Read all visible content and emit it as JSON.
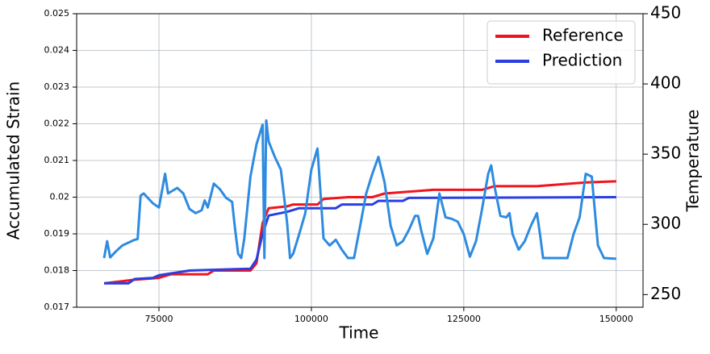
{
  "chart_data": {
    "type": "line",
    "xlabel": "Time",
    "ylabel": "Accumulated Strain",
    "y2label": "Temperature",
    "xlim": [
      61500,
      154400
    ],
    "xticks": [
      75000,
      100000,
      125000,
      150000
    ],
    "ylim": [
      0.017,
      0.025
    ],
    "yticks": [
      0.017,
      0.018,
      0.019,
      0.02,
      0.021,
      0.022,
      0.023,
      0.024,
      0.025
    ],
    "y2lim": [
      241,
      450
    ],
    "y2ticks": [
      250,
      300,
      350,
      400,
      450
    ],
    "grid": true,
    "legend": "upper right",
    "series": [
      {
        "name": "Reference",
        "color": "#f0141e",
        "axis": "y",
        "x": [
          66000,
          71000,
          75000,
          77000,
          83000,
          84000,
          90000,
          91000,
          92000,
          93000,
          96000,
          97000,
          101000,
          102000,
          106000,
          110000,
          112000,
          120000,
          128000,
          130000,
          137000,
          145000,
          150000
        ],
        "values": [
          0.01765,
          0.01775,
          0.0178,
          0.0179,
          0.0179,
          0.018,
          0.018,
          0.0182,
          0.0193,
          0.0197,
          0.01975,
          0.0198,
          0.0198,
          0.01995,
          0.02,
          0.02,
          0.0201,
          0.0202,
          0.0202,
          0.0203,
          0.0203,
          0.0204,
          0.02043
        ]
      },
      {
        "name": "Prediction",
        "color": "#2a3fe0",
        "axis": "y",
        "x": [
          66000,
          70000,
          71000,
          74000,
          75000,
          78000,
          80000,
          90000,
          91000,
          92000,
          93000,
          96000,
          98000,
          104000,
          105000,
          110000,
          111000,
          115000,
          116000,
          150000
        ],
        "values": [
          0.01765,
          0.01765,
          0.01777,
          0.0178,
          0.01787,
          0.01795,
          0.018,
          0.01805,
          0.0183,
          0.019,
          0.0195,
          0.0196,
          0.0197,
          0.0197,
          0.0198,
          0.0198,
          0.0199,
          0.0199,
          0.01998,
          0.02
        ]
      },
      {
        "color": "#2e8be0",
        "axis": "y2",
        "x": [
          66000,
          66500,
          67000,
          68000,
          69000,
          71000,
          71500,
          72000,
          72500,
          74000,
          75000,
          76000,
          76500,
          78000,
          79000,
          80000,
          81000,
          82000,
          82500,
          83000,
          84000,
          85000,
          86000,
          87000,
          87500,
          88000,
          88500,
          89000,
          90000,
          91000,
          92000,
          92300,
          92600,
          93000,
          94000,
          95000,
          96000,
          96500,
          97000,
          98000,
          99000,
          100000,
          101000,
          101500,
          102000,
          103000,
          104000,
          105000,
          106000,
          107000,
          108000,
          109000,
          110000,
          111000,
          112000,
          113000,
          114000,
          115000,
          116000,
          117000,
          117500,
          118000,
          119000,
          120000,
          121000,
          122000,
          123000,
          124000,
          125000,
          126000,
          127000,
          128000,
          129000,
          129500,
          130000,
          131000,
          132000,
          132500,
          133000,
          134000,
          135000,
          136000,
          137000,
          137500,
          138000,
          142000,
          143000,
          144000,
          145000,
          146000,
          147000,
          148000,
          150000
        ],
        "values": [
          276,
          288,
          276.5,
          281,
          285,
          289,
          289.6,
          320.5,
          322,
          315,
          312,
          336,
          322,
          326,
          322,
          311,
          308,
          310,
          317,
          312,
          329,
          325,
          319,
          316,
          296,
          279,
          276,
          290,
          334,
          357,
          371,
          276,
          374,
          359,
          348,
          339,
          302,
          276,
          279,
          293,
          308,
          339,
          354,
          322,
          290,
          285,
          289,
          282,
          276,
          276,
          299,
          322,
          336,
          348,
          330,
          299,
          285,
          288,
          296,
          306,
          306,
          296,
          279,
          290,
          322,
          305,
          304,
          302,
          293,
          277,
          288,
          311,
          336,
          342,
          328,
          306,
          305,
          308,
          293,
          282,
          288,
          299,
          308,
          293,
          276,
          276,
          293,
          305,
          336,
          334,
          285,
          276,
          275.5
        ]
      }
    ]
  }
}
